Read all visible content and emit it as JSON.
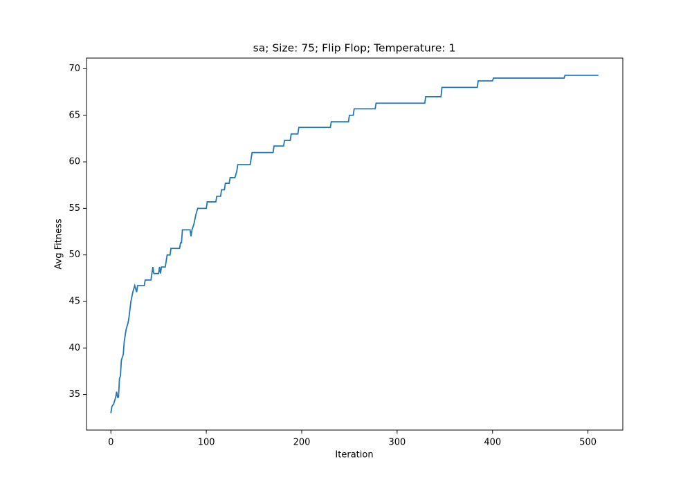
{
  "chart_data": {
    "type": "line",
    "title": "sa; Size: 75; Flip Flop; Temperature: 1",
    "x_label": "Iteration",
    "y_label": "Avg Fitness",
    "x": [
      0,
      1,
      3,
      5,
      6,
      7,
      8,
      9,
      10,
      11,
      13,
      14,
      16,
      18,
      19,
      21,
      23,
      25,
      27,
      28,
      35,
      36,
      42,
      44,
      45,
      50,
      51,
      52,
      53,
      57,
      59,
      62,
      63,
      72,
      73,
      74,
      75,
      83,
      84,
      85,
      87,
      89,
      91,
      100,
      101,
      110,
      111,
      115,
      116,
      119,
      120,
      124,
      125,
      130,
      132,
      133,
      146,
      148,
      170,
      171,
      181,
      182,
      188,
      189,
      196,
      197,
      230,
      231,
      249,
      250,
      254,
      255,
      277,
      278,
      329,
      330,
      346,
      347,
      384,
      385,
      400,
      401,
      475,
      476,
      511
    ],
    "series": [
      {
        "color": "#1f77b4",
        "values": [
          33,
          33.7,
          34,
          34.7,
          35.3,
          34.7,
          34.7,
          36.7,
          37,
          38.7,
          39.3,
          40.7,
          42,
          42.7,
          43.3,
          45,
          46,
          46.7,
          46,
          46.7,
          46.7,
          47.3,
          47.3,
          48.7,
          48,
          48,
          48.7,
          48,
          48.7,
          48.7,
          50,
          50,
          50.7,
          50.7,
          51.3,
          51.3,
          52.7,
          52.7,
          52,
          52.7,
          53.3,
          54.3,
          55,
          55,
          55.7,
          55.7,
          56.3,
          56.3,
          57,
          57,
          57.7,
          57.7,
          58.3,
          58.3,
          59,
          59.7,
          59.7,
          61,
          61,
          61.7,
          61.7,
          62.3,
          62.3,
          63,
          63,
          63.7,
          63.7,
          64.3,
          64.3,
          65,
          65,
          65.7,
          65.7,
          66.3,
          66.3,
          67,
          67,
          68,
          68,
          68.7,
          68.7,
          69,
          69,
          69.3,
          69.3
        ]
      }
    ],
    "xlim": [
      -25.55,
      536.55
    ],
    "ylim": [
      31.18,
      71.15
    ],
    "xticks": [
      0,
      100,
      200,
      300,
      400,
      500
    ],
    "yticks": [
      35,
      40,
      45,
      50,
      55,
      60,
      65,
      70
    ]
  }
}
